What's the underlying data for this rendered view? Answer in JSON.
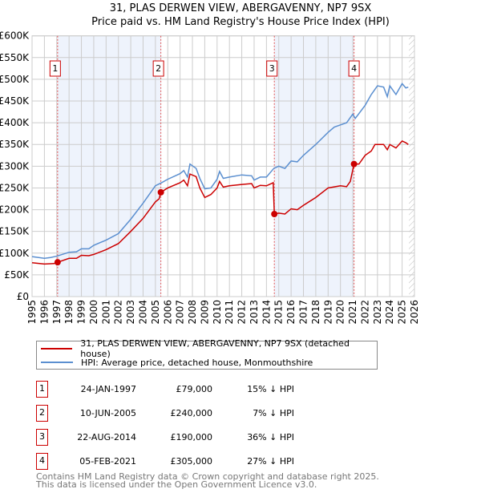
{
  "title_line1": "31, PLAS DERWEN VIEW, ABERGAVENNY, NP7 9SX",
  "title_line2": "Price paid vs. HM Land Registry's House Price Index (HPI)",
  "chart_data": {
    "type": "line",
    "title": "31, PLAS DERWEN VIEW, ABERGAVENNY, NP7 9SX — Price paid vs. HM Land Registry's House Price Index (HPI)",
    "xlim": [
      1995,
      2026
    ],
    "ylim": [
      0,
      600000
    ],
    "xticks": [
      "1995",
      "1996",
      "1997",
      "1998",
      "1999",
      "2000",
      "2001",
      "2002",
      "2003",
      "2004",
      "2005",
      "2006",
      "2007",
      "2008",
      "2009",
      "2010",
      "2011",
      "2012",
      "2013",
      "2014",
      "2015",
      "2016",
      "2017",
      "2018",
      "2019",
      "2020",
      "2021",
      "2022",
      "2023",
      "2024",
      "2025",
      "2026"
    ],
    "yticks": [
      {
        "v": 0,
        "l": "£0"
      },
      {
        "v": 50000,
        "l": "£50K"
      },
      {
        "v": 100000,
        "l": "£100K"
      },
      {
        "v": 150000,
        "l": "£150K"
      },
      {
        "v": 200000,
        "l": "£200K"
      },
      {
        "v": 250000,
        "l": "£250K"
      },
      {
        "v": 300000,
        "l": "£300K"
      },
      {
        "v": 350000,
        "l": "£350K"
      },
      {
        "v": 400000,
        "l": "£400K"
      },
      {
        "v": 450000,
        "l": "£450K"
      },
      {
        "v": 500000,
        "l": "£500K"
      },
      {
        "v": 550000,
        "l": "£550K"
      },
      {
        "v": 600000,
        "l": "£600K"
      }
    ],
    "grid": true,
    "shaded_ranges": [
      [
        1997.07,
        2005.44
      ],
      [
        2014.64,
        2021.1
      ]
    ],
    "hatched_from": 2025.55,
    "series": [
      {
        "name": "31, PLAS DERWEN VIEW, ABERGAVENNY, NP7 9SX (detached house)",
        "color": "#cc0000",
        "x": [
          1995,
          1996,
          1996.8,
          1997.07,
          1998,
          1998.6,
          1999,
          1999.6,
          2000,
          2001,
          2002,
          2003,
          2004,
          2005,
          2005.3,
          2005.44,
          2006,
          2007,
          2007.3,
          2007.6,
          2007.8,
          2008.3,
          2008.6,
          2009,
          2009.5,
          2010,
          2010.2,
          2010.5,
          2011,
          2012,
          2012.8,
          2013,
          2013.5,
          2014,
          2014.55,
          2014.64,
          2015,
          2015.5,
          2016,
          2016.5,
          2017,
          2018,
          2019,
          2020,
          2020.5,
          2020.8,
          2021.1,
          2021.5,
          2022,
          2022.5,
          2022.8,
          2023.5,
          2023.8,
          2024,
          2024.5,
          2025,
          2025.3,
          2025.5
        ],
        "y": [
          78000,
          75000,
          76000,
          79000,
          88000,
          88000,
          95000,
          94000,
          97000,
          108000,
          122000,
          150000,
          180000,
          218000,
          225000,
          240000,
          250000,
          262000,
          268000,
          255000,
          282000,
          276000,
          250000,
          228000,
          235000,
          250000,
          265000,
          252000,
          255000,
          258000,
          260000,
          250000,
          256000,
          255000,
          262000,
          190000,
          192000,
          190000,
          202000,
          200000,
          210000,
          228000,
          250000,
          255000,
          253000,
          265000,
          305000,
          305000,
          325000,
          335000,
          350000,
          350000,
          338000,
          350000,
          342000,
          358000,
          354000,
          350000
        ]
      },
      {
        "name": "HPI: Average price, detached house, Monmouthshire",
        "color": "#5b8fd0",
        "x": [
          1995,
          1996,
          1996.5,
          1997,
          1998,
          1998.6,
          1999,
          1999.6,
          2000,
          2001,
          2002,
          2003,
          2004,
          2005,
          2005.5,
          2006,
          2007,
          2007.3,
          2007.6,
          2007.8,
          2008.3,
          2008.6,
          2009,
          2009.5,
          2010,
          2010.2,
          2010.5,
          2011,
          2012,
          2012.8,
          2013,
          2013.5,
          2014,
          2014.6,
          2015,
          2015.5,
          2016,
          2016.5,
          2017,
          2018,
          2019,
          2019.5,
          2020,
          2020.5,
          2021,
          2021.2,
          2022,
          2022.5,
          2023,
          2023.5,
          2023.8,
          2024,
          2024.5,
          2025,
          2025.3,
          2025.5
        ],
        "y": [
          92000,
          88000,
          90000,
          93000,
          102000,
          103000,
          110000,
          110000,
          118000,
          130000,
          145000,
          178000,
          215000,
          255000,
          262000,
          270000,
          283000,
          290000,
          275000,
          305000,
          295000,
          272000,
          248000,
          250000,
          270000,
          288000,
          272000,
          275000,
          280000,
          278000,
          268000,
          275000,
          275000,
          295000,
          300000,
          295000,
          312000,
          310000,
          325000,
          350000,
          378000,
          390000,
          395000,
          400000,
          420000,
          410000,
          440000,
          465000,
          485000,
          482000,
          460000,
          485000,
          465000,
          490000,
          480000,
          482000
        ]
      }
    ],
    "sales": [
      {
        "n": "1",
        "x": 1997.07,
        "y": 79000,
        "date": "24-JAN-1997",
        "price": "£79,000",
        "hpi": "15% ↓ HPI"
      },
      {
        "n": "2",
        "x": 2005.44,
        "y": 240000,
        "date": "10-JUN-2005",
        "price": "£240,000",
        "hpi": "7% ↓ HPI"
      },
      {
        "n": "3",
        "x": 2014.64,
        "y": 190000,
        "date": "22-AUG-2014",
        "price": "£190,000",
        "hpi": "36% ↓ HPI"
      },
      {
        "n": "4",
        "x": 2021.1,
        "y": 305000,
        "date": "05-FEB-2021",
        "price": "£305,000",
        "hpi": "27% ↓ HPI"
      }
    ],
    "legend": "below"
  },
  "footer_line1": "Contains HM Land Registry data © Crown copyright and database right 2025.",
  "footer_line2": "This data is licensed under the Open Government Licence v3.0."
}
